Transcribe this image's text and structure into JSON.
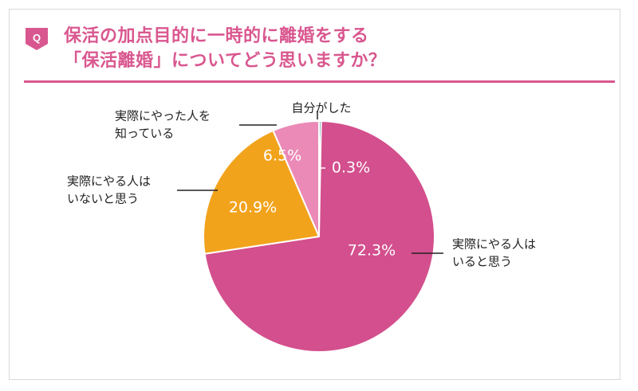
{
  "header": {
    "badge": "Q",
    "title_line1": "保活の加点目的に一時的に離婚をする",
    "title_line2": "「保活離婚」についてどう思いますか？"
  },
  "colors": {
    "accent": "#d9578f",
    "slice_thinks_people_do": "#d34f8d",
    "slice_thinks_no_one": "#f2a31c",
    "slice_knows_someone": "#eb8ab6",
    "slice_did_myself": "#2e8b8f"
  },
  "chart_data": {
    "type": "pie",
    "title": "保活の加点目的に一時的に離婚をする「保活離婚」についてどう思いますか？",
    "start_angle_deg": 0,
    "direction": "clockwise",
    "slices": [
      {
        "label": "自分がした",
        "value": 0.3,
        "value_label": "0.3%",
        "color": "#2e8b8f"
      },
      {
        "label": "実際にやる人はいると思う",
        "value": 72.3,
        "value_label": "72.3%",
        "color": "#d34f8d"
      },
      {
        "label": "実際にやる人はいないと思う",
        "value": 20.9,
        "value_label": "20.9%",
        "color": "#f2a31c"
      },
      {
        "label": "実際にやった人を知っている",
        "value": 6.5,
        "value_label": "6.5%",
        "color": "#eb8ab6"
      }
    ],
    "legend": "none",
    "callout_labels": [
      {
        "slice": 0,
        "lines": [
          "自分がした"
        ]
      },
      {
        "slice": 1,
        "lines": [
          "実際にやる人は",
          "いると思う"
        ]
      },
      {
        "slice": 2,
        "lines": [
          "実際にやる人は",
          "いないと思う"
        ]
      },
      {
        "slice": 3,
        "lines": [
          "実際にやった人を",
          "知っている"
        ]
      }
    ]
  }
}
